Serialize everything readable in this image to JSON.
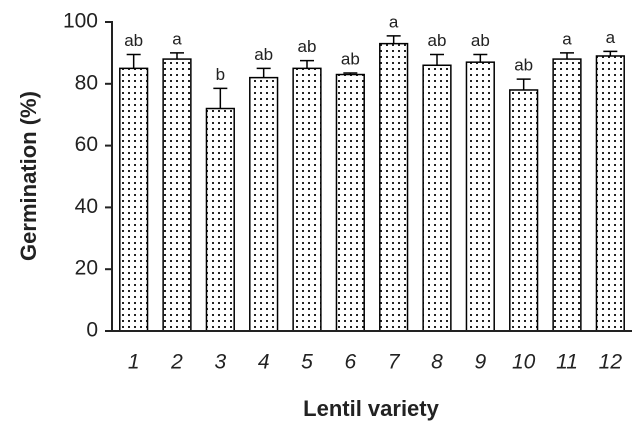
{
  "chart_data": {
    "type": "bar",
    "x_label": "Lentil variety",
    "y_label": "Germination (%)",
    "categories": [
      "1",
      "2",
      "3",
      "4",
      "5",
      "6",
      "7",
      "8",
      "9",
      "10",
      "11",
      "12"
    ],
    "values": [
      85,
      88,
      72,
      82,
      85,
      83,
      93,
      86,
      87,
      78,
      88,
      89
    ],
    "errors": [
      4.5,
      2,
      6.5,
      3,
      2.5,
      0.5,
      2.5,
      3.5,
      2.5,
      3.5,
      2,
      1.5
    ],
    "significance": [
      "ab",
      "a",
      "b",
      "ab",
      "ab",
      "ab",
      "a",
      "ab",
      "ab",
      "ab",
      "a",
      "a"
    ],
    "color": "#000000",
    "ylim": [
      0,
      100
    ],
    "yticks": [
      0,
      20,
      40,
      60,
      80,
      100
    ],
    "grid": false
  }
}
